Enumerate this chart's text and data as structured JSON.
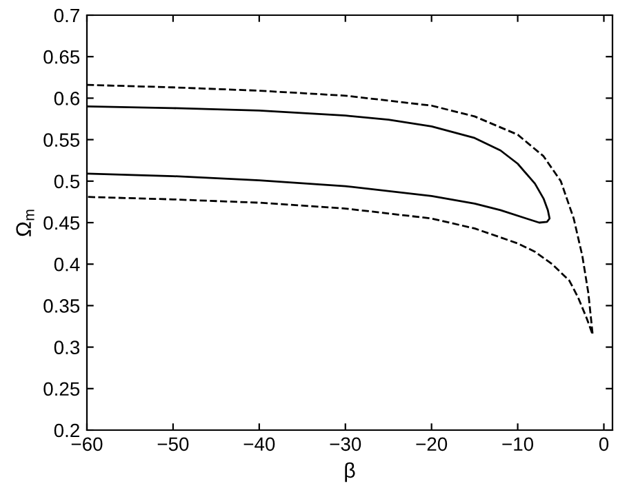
{
  "chart_data": {
    "type": "line",
    "xlabel": "β",
    "ylabel": "Ω$_{m}$",
    "xlim": [
      -60,
      1
    ],
    "ylim": [
      0.2,
      0.7
    ],
    "xticks": [
      -60,
      -50,
      -40,
      -30,
      -20,
      -10,
      0
    ],
    "yticks": [
      0.2,
      0.25,
      0.3,
      0.35,
      0.4,
      0.45,
      0.5,
      0.55,
      0.6,
      0.65,
      0.7
    ],
    "grid": false,
    "marker": "none",
    "series": [
      {
        "color": "#000000",
        "line_style": "solid",
        "x": [
          -60,
          -50,
          -40,
          -30,
          -25,
          -20,
          -15,
          -12,
          -10,
          -8,
          -7,
          -6.5,
          -6.3,
          -6.6,
          -7.5,
          -9,
          -12,
          -15,
          -20,
          -30,
          -40,
          -50,
          -60
        ],
        "values": [
          0.59,
          0.588,
          0.585,
          0.579,
          0.574,
          0.566,
          0.552,
          0.537,
          0.521,
          0.497,
          0.479,
          0.465,
          0.455,
          0.451,
          0.45,
          0.455,
          0.465,
          0.473,
          0.482,
          0.494,
          0.501,
          0.506,
          0.509
        ]
      },
      {
        "color": "#000000",
        "line_style": "dashed",
        "x": [
          -60,
          -50,
          -40,
          -30,
          -20,
          -15,
          -10,
          -7,
          -5,
          -3.5,
          -2.5,
          -1.8,
          -1.3,
          -2,
          -3,
          -4,
          -6,
          -8,
          -10,
          -15,
          -20,
          -30,
          -40,
          -50,
          -60
        ],
        "values": [
          0.616,
          0.613,
          0.609,
          0.603,
          0.591,
          0.578,
          0.556,
          0.53,
          0.5,
          0.455,
          0.41,
          0.365,
          0.315,
          0.335,
          0.36,
          0.38,
          0.4,
          0.415,
          0.425,
          0.443,
          0.455,
          0.467,
          0.474,
          0.478,
          0.481
        ]
      }
    ]
  }
}
